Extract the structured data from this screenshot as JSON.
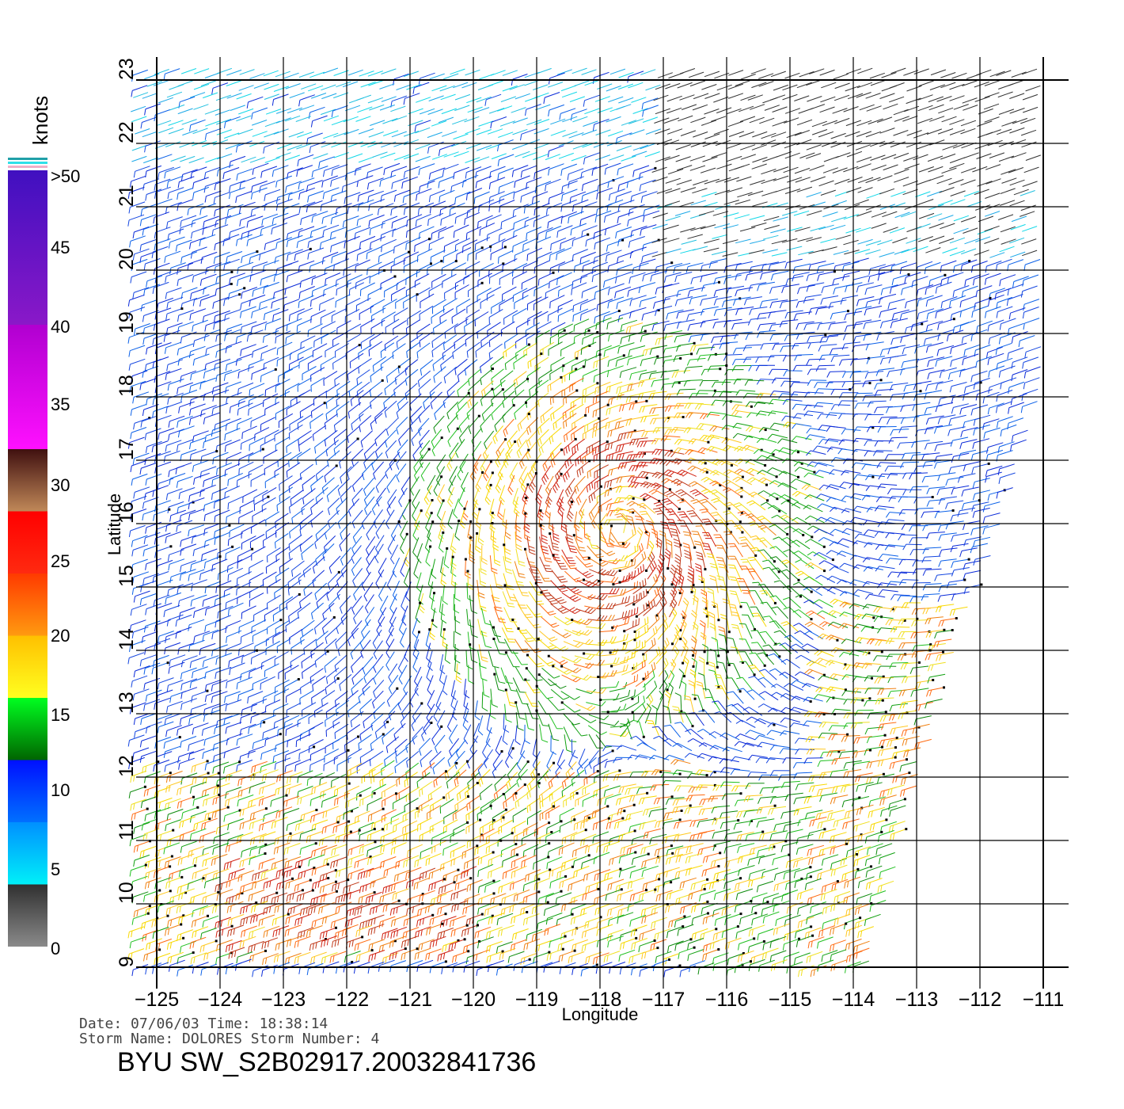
{
  "map": {
    "type": "wind-barb-map",
    "xlabel": "Longitude",
    "ylabel": "Latitude",
    "lon_ticks": [
      "−125",
      "−124",
      "−123",
      "−122",
      "−121",
      "−120",
      "−119",
      "−118",
      "−117",
      "−116",
      "−115",
      "−114",
      "−113",
      "−112",
      "−111"
    ],
    "lat_ticks": [
      "9",
      "10",
      "11",
      "12",
      "13",
      "14",
      "15",
      "16",
      "17",
      "18",
      "19",
      "20",
      "21",
      "22",
      "23"
    ],
    "lon_range": [
      -125,
      -111
    ],
    "lat_range": [
      9,
      23
    ],
    "storm_center": {
      "lon": -117.7,
      "lat": 15.9
    },
    "grid": true
  },
  "legend": {
    "title": "knots",
    "labels": [
      ">50",
      "45",
      "40",
      "35",
      "30",
      "25",
      "20",
      "15",
      "10",
      "5",
      "0"
    ],
    "bands": [
      {
        "from": 50,
        "to": 100,
        "colors": [
          "#4010c0",
          "#8a18c8"
        ]
      },
      {
        "from": 40,
        "to": 50,
        "colors": [
          "#b000d0",
          "#ff10ff"
        ]
      },
      {
        "from": 35,
        "to": 40,
        "colors": [
          "#401010",
          "#c08858"
        ]
      },
      {
        "from": 30,
        "to": 35,
        "colors": [
          "#ff0000",
          "#ff2a10"
        ]
      },
      {
        "from": 25,
        "to": 30,
        "colors": [
          "#ff3a00",
          "#ff9a10"
        ]
      },
      {
        "from": 20,
        "to": 25,
        "colors": [
          "#ffc000",
          "#ffff20"
        ]
      },
      {
        "from": 15,
        "to": 20,
        "colors": [
          "#00ff20",
          "#006400"
        ]
      },
      {
        "from": 10,
        "to": 15,
        "colors": [
          "#0010ff",
          "#0070ff"
        ]
      },
      {
        "from": 5,
        "to": 10,
        "colors": [
          "#0090ff",
          "#00f0f8"
        ]
      },
      {
        "from": 0,
        "to": 5,
        "colors": [
          "#303030",
          "#8a8a8a"
        ]
      }
    ]
  },
  "footer": {
    "date_line": "Date: 07/06/03   Time: 18:38:14",
    "storm_line": "Storm  Name: DOLORES   Storm Number: 4",
    "title": "BYU SW_S2B02917.20032841736"
  }
}
